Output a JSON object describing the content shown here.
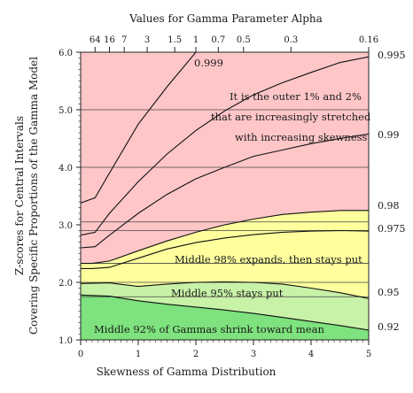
{
  "chart_data": {
    "type": "area",
    "title": "",
    "xlabel": "Skewness of Gamma Distribution",
    "ylabel_lines": [
      "Z-scores for Central Intervals",
      "Covering Specific Proportions of the Gamma Model"
    ],
    "top_axis_title": "Values for Gamma Parameter Alpha",
    "xlim": [
      0,
      5
    ],
    "ylim": [
      1.0,
      6.0
    ],
    "x_ticks": [
      "0",
      "1",
      "2",
      "3",
      "4",
      "5"
    ],
    "y_ticks": [
      "1.0",
      "2.0",
      "3.0",
      "4.0",
      "5.0",
      "6.0"
    ],
    "top_ticks": [
      {
        "label": "64",
        "skewness": 0.25
      },
      {
        "label": "16",
        "skewness": 0.5
      },
      {
        "label": "7",
        "skewness": 0.756
      },
      {
        "label": "3",
        "skewness": 1.155
      },
      {
        "label": "1.5",
        "skewness": 1.633
      },
      {
        "label": "1",
        "skewness": 2.0
      },
      {
        "label": "0.7",
        "skewness": 2.39
      },
      {
        "label": "0.5",
        "skewness": 2.828
      },
      {
        "label": "0.3",
        "skewness": 3.651
      },
      {
        "label": "0.16",
        "skewness": 5.0
      }
    ],
    "reference_lines_y": [
      1.75,
      2.0,
      2.33,
      2.9,
      3.05,
      4.0,
      5.0
    ],
    "series": [
      {
        "name": "0.92",
        "x": [
          0,
          0.5,
          1.0,
          1.5,
          2.0,
          2.5,
          3.0,
          3.5,
          4.0,
          4.5,
          5.0
        ],
        "y": [
          1.78,
          1.76,
          1.68,
          1.62,
          1.57,
          1.52,
          1.46,
          1.39,
          1.32,
          1.25,
          1.17
        ]
      },
      {
        "name": "0.95",
        "x": [
          0,
          0.5,
          1.0,
          1.5,
          2.0,
          2.5,
          3.0,
          3.5,
          4.0,
          4.5,
          5.0
        ],
        "y": [
          1.98,
          1.99,
          1.93,
          1.97,
          2.0,
          2.01,
          2.0,
          1.97,
          1.9,
          1.82,
          1.72
        ]
      },
      {
        "name": "0.975",
        "x": [
          0,
          0.2,
          0.5,
          1.0,
          1.5,
          2.0,
          2.5,
          3.0,
          3.5,
          4.0,
          4.5,
          5.0
        ],
        "y": [
          2.24,
          2.24,
          2.26,
          2.42,
          2.58,
          2.69,
          2.77,
          2.83,
          2.87,
          2.89,
          2.9,
          2.89
        ]
      },
      {
        "name": "0.98",
        "x": [
          0,
          0.2,
          0.5,
          1.0,
          1.5,
          2.0,
          2.5,
          3.0,
          3.5,
          4.0,
          4.5,
          5.0
        ],
        "y": [
          2.33,
          2.33,
          2.37,
          2.55,
          2.72,
          2.87,
          3.0,
          3.1,
          3.18,
          3.22,
          3.25,
          3.25
        ]
      },
      {
        "name": "0.99",
        "x": [
          0,
          0.25,
          0.5,
          1.0,
          1.5,
          2.0,
          2.5,
          3.0,
          3.5,
          4.0,
          4.5,
          5.0
        ],
        "y": [
          2.6,
          2.62,
          2.82,
          3.2,
          3.53,
          3.8,
          4.0,
          4.19,
          4.3,
          4.41,
          4.5,
          4.58
        ]
      },
      {
        "name": "0.995",
        "x": [
          0,
          0.25,
          0.5,
          1.0,
          1.5,
          2.0,
          2.5,
          3.0,
          3.5,
          4.0,
          4.5,
          5.0
        ],
        "y": [
          2.82,
          2.87,
          3.2,
          3.75,
          4.23,
          4.64,
          4.98,
          5.26,
          5.47,
          5.65,
          5.82,
          5.92
        ]
      },
      {
        "name": "0.999",
        "x": [
          0,
          0.25,
          0.5,
          1.0,
          1.5,
          2.0
        ],
        "y": [
          3.38,
          3.47,
          3.9,
          4.75,
          5.4,
          6.0
        ]
      }
    ],
    "band_colors": {
      "middle_92": "#7ee27e",
      "middle_95": "#c8f2a8",
      "middle_98": "#ffff9e",
      "outer": "#ffc6c8"
    },
    "annotations": {
      "label_0999": "0.999",
      "outer_lines": [
        "It is the outer 1% and 2%",
        "that are increasingly stretched",
        "with increasing skewness"
      ],
      "middle_98": "Middle 98% expands, then stays put",
      "middle_95": "Middle 95% stays put",
      "middle_92": "Middle 92% of Gammas shrink toward mean"
    },
    "right_labels": [
      "0.995",
      "0.99",
      "0.98",
      "0.975",
      "0.95",
      "0.92"
    ],
    "grid": false,
    "legend": "none"
  }
}
